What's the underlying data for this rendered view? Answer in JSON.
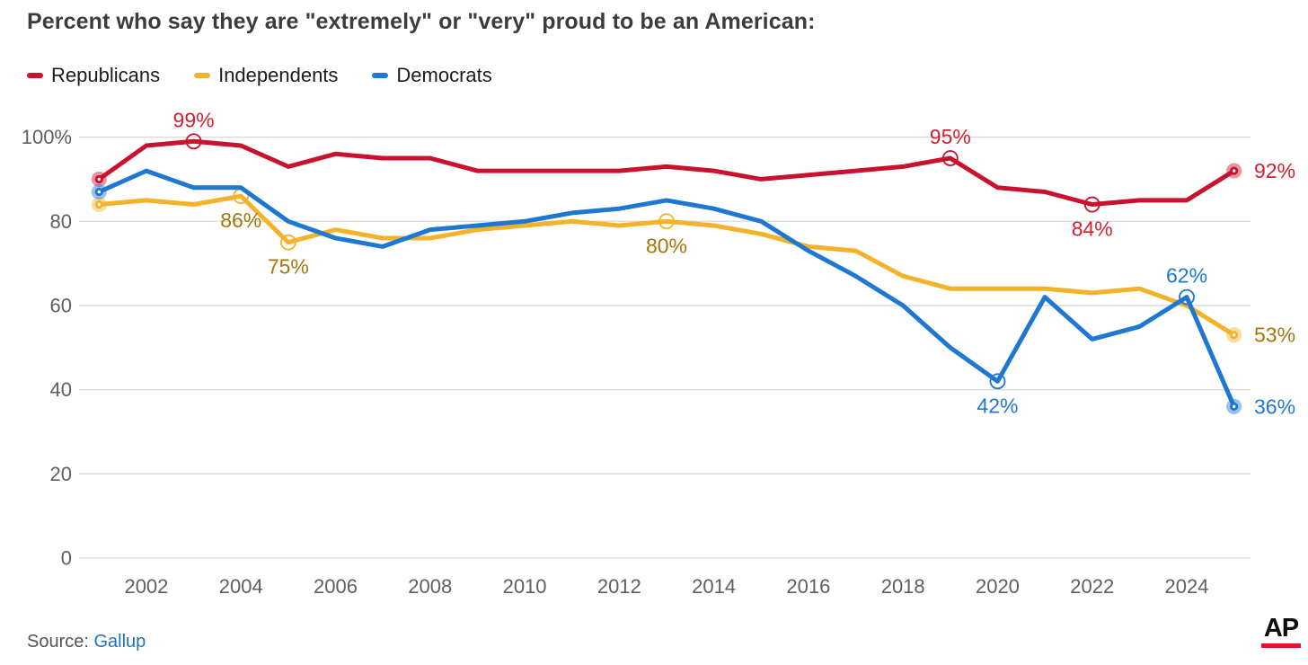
{
  "title": "Percent who say they are \"extremely\" or \"very\" proud to be an American:",
  "source": {
    "prefix": "Source: ",
    "link_label": "Gallup"
  },
  "logo": {
    "text": "AP"
  },
  "colors": {
    "grid": "#d9d9d9",
    "axis_text": "#5f5f5f",
    "title_text": "#3c3c3c",
    "ap_red": "#e8112d"
  },
  "chart_data": {
    "type": "line",
    "title": "Percent who say they are \"extremely\" or \"very\" proud to be an American:",
    "legend_position": "top-left",
    "grid": "horizontal",
    "ylim": [
      0,
      100
    ],
    "x": [
      2001,
      2002,
      2003,
      2004,
      2005,
      2006,
      2007,
      2008,
      2009,
      2010,
      2011,
      2012,
      2013,
      2014,
      2015,
      2016,
      2017,
      2018,
      2019,
      2020,
      2021,
      2022,
      2023,
      2024,
      2025
    ],
    "x_ticks": [
      {
        "value": 2002,
        "label": "2002"
      },
      {
        "value": 2004,
        "label": "2004"
      },
      {
        "value": 2006,
        "label": "2006"
      },
      {
        "value": 2008,
        "label": "2008"
      },
      {
        "value": 2010,
        "label": "2010"
      },
      {
        "value": 2012,
        "label": "2012"
      },
      {
        "value": 2014,
        "label": "2014"
      },
      {
        "value": 2016,
        "label": "2016"
      },
      {
        "value": 2018,
        "label": "2018"
      },
      {
        "value": 2020,
        "label": "2020"
      },
      {
        "value": 2022,
        "label": "2022"
      },
      {
        "value": 2024,
        "label": "2024"
      }
    ],
    "y_ticks": [
      {
        "value": 100,
        "label": "100%"
      },
      {
        "value": 80,
        "label": "80"
      },
      {
        "value": 60,
        "label": "60"
      },
      {
        "value": 40,
        "label": "40"
      },
      {
        "value": 20,
        "label": "20"
      },
      {
        "value": 0,
        "label": "0"
      }
    ],
    "series": [
      {
        "name": "Republicans",
        "color": "#c9132e",
        "label_color": "#d22030",
        "values": [
          90,
          98,
          99,
          98,
          93,
          96,
          95,
          95,
          92,
          92,
          92,
          92,
          93,
          92,
          90,
          91,
          92,
          93,
          95,
          88,
          87,
          84,
          85,
          85,
          92
        ],
        "endpoint_markers": [
          2001,
          2025
        ],
        "ring_markers": [
          2003,
          2019,
          2022
        ],
        "point_labels": [
          {
            "year": 2003,
            "text": "99%",
            "position": "above"
          },
          {
            "year": 2019,
            "text": "95%",
            "position": "above"
          },
          {
            "year": 2022,
            "text": "84%",
            "position": "below"
          },
          {
            "year": 2025,
            "text": "92%",
            "position": "right"
          }
        ]
      },
      {
        "name": "Independents",
        "color": "#f3b229",
        "label_color": "#a0770e",
        "values": [
          84,
          85,
          84,
          86,
          75,
          78,
          76,
          76,
          78,
          79,
          80,
          79,
          80,
          79,
          77,
          74,
          73,
          67,
          64,
          64,
          64,
          63,
          64,
          60,
          53
        ],
        "endpoint_markers": [
          2001,
          2025
        ],
        "ring_markers": [
          2004,
          2005,
          2013
        ],
        "point_labels": [
          {
            "year": 2004,
            "text": "86%",
            "position": "below"
          },
          {
            "year": 2005,
            "text": "75%",
            "position": "below"
          },
          {
            "year": 2013,
            "text": "80%",
            "position": "below"
          },
          {
            "year": 2025,
            "text": "53%",
            "position": "right"
          }
        ]
      },
      {
        "name": "Democrats",
        "color": "#1e78d2",
        "label_color": "#1e78d2",
        "values": [
          87,
          92,
          88,
          88,
          80,
          76,
          74,
          78,
          79,
          80,
          82,
          83,
          85,
          83,
          80,
          73,
          67,
          60,
          50,
          42,
          62,
          52,
          55,
          62,
          36
        ],
        "endpoint_markers": [
          2001,
          2025
        ],
        "ring_markers": [
          2020,
          2024
        ],
        "point_labels": [
          {
            "year": 2020,
            "text": "42%",
            "position": "below"
          },
          {
            "year": 2024,
            "text": "62%",
            "position": "above"
          },
          {
            "year": 2025,
            "text": "36%",
            "position": "right"
          }
        ]
      }
    ]
  }
}
